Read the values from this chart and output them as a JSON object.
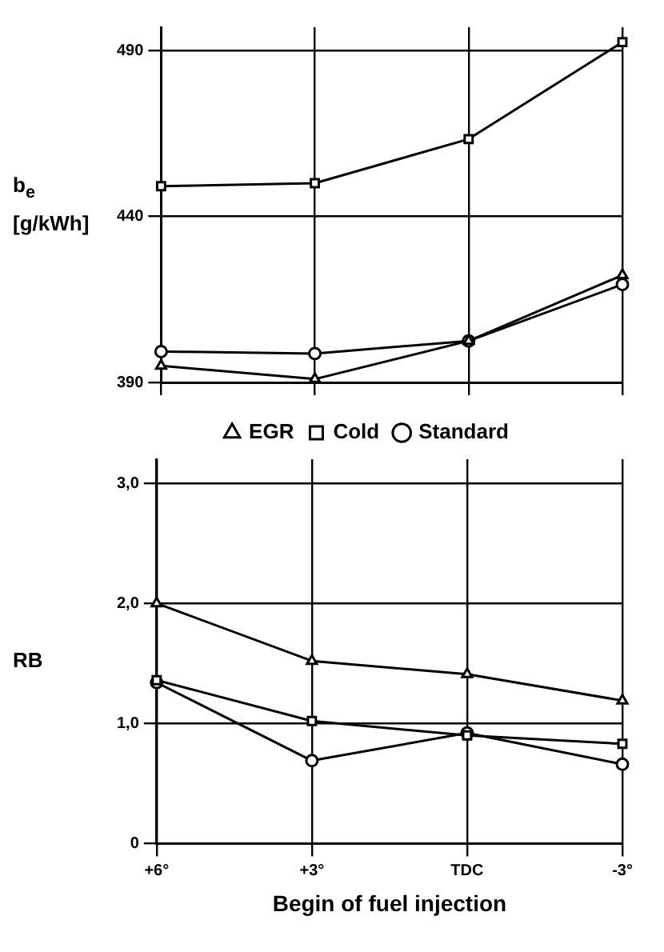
{
  "chart_data": [
    {
      "type": "line",
      "ylabel": "b$_{e}$ [g/kWh]",
      "categories": [
        null,
        null,
        null,
        null
      ],
      "ylim": [
        390,
        497
      ],
      "yticks": [
        390,
        440,
        490
      ],
      "grid": true,
      "legend": false,
      "tick_labels": "y",
      "series": [
        {
          "color": "#000000",
          "marker": "circle",
          "values": [
            399.3,
            398.7,
            402.5,
            419.5
          ]
        },
        {
          "color": "#000000",
          "marker": "square",
          "values": [
            449.1,
            450,
            463.3,
            492.5
          ]
        },
        {
          "color": "#000000",
          "marker": "triangle",
          "values": [
            395,
            391,
            402.5,
            422.3
          ]
        }
      ]
    },
    {
      "type": "line",
      "ylabel": "RB",
      "xlabel": "Begin of fuel injection",
      "categories": [
        "+6°",
        "+3°",
        "TDC",
        "-3°"
      ],
      "ylim": [
        0,
        3.2
      ],
      "yticks": [
        0,
        {
          "value": 1,
          "label": "1,0"
        },
        {
          "value": 2,
          "label": "2,0"
        },
        {
          "value": 3,
          "label": "3,0"
        }
      ],
      "grid": true,
      "legend": "top",
      "series": [
        {
          "name": "Standard",
          "color": "#000000",
          "marker": "circle",
          "values": [
            1.34,
            0.69,
            0.92,
            0.66
          ]
        },
        {
          "name": "Cold",
          "color": "#000000",
          "marker": "square",
          "values": [
            1.36,
            1.02,
            0.9,
            0.83
          ]
        },
        {
          "name": "EGR",
          "color": "#000000",
          "marker": "triangle",
          "values": [
            2.0,
            1.52,
            1.41,
            1.19
          ]
        }
      ]
    }
  ]
}
